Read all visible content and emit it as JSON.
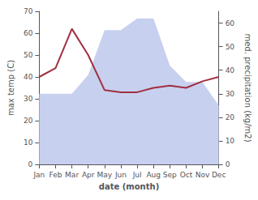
{
  "chart_data": {
    "type": "line",
    "categories": [
      "Jan",
      "Feb",
      "Mar",
      "Apr",
      "May",
      "Jun",
      "Jul",
      "Aug",
      "Sep",
      "Oct",
      "Nov",
      "Dec"
    ],
    "series": [
      {
        "type": "area",
        "axis": "y2",
        "color": "#c8d0f0",
        "values": [
          30,
          30,
          30,
          38,
          57,
          57,
          62,
          62,
          42,
          35,
          35,
          25
        ]
      },
      {
        "type": "line",
        "color": "#a03040",
        "values": [
          40,
          44,
          62,
          50,
          34,
          33,
          33,
          35,
          36,
          35,
          38,
          40
        ]
      }
    ],
    "xlabel": "date (month)",
    "ylabel": "max temp (C)",
    "y2label": "med. precipitation (kg/m2)",
    "ylim": [
      0,
      70
    ],
    "yticks": [
      0,
      10,
      20,
      30,
      40,
      50,
      60,
      70
    ],
    "y2lim": [
      0,
      65
    ],
    "y2ticks": [
      0,
      10,
      20,
      30,
      40,
      50,
      60
    ],
    "grid": false
  }
}
